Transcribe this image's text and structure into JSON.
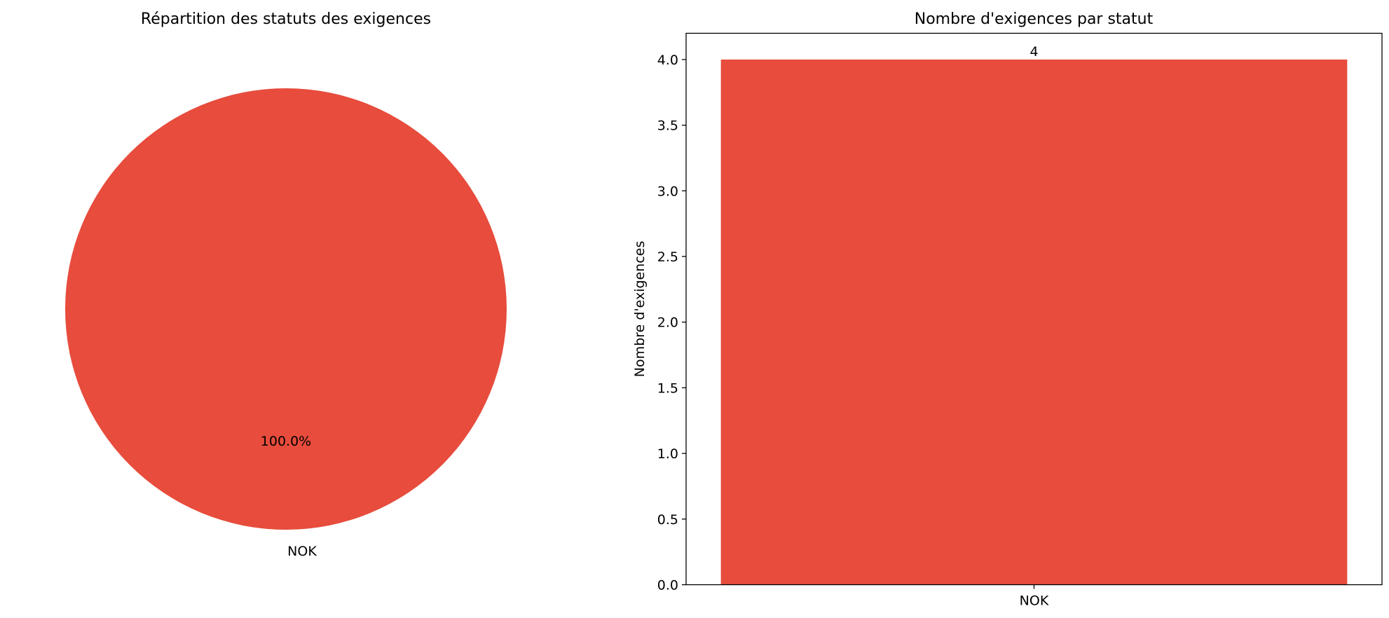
{
  "chart_data": [
    {
      "type": "pie",
      "title": "Répartition des statuts des exigences",
      "labels": [
        "NOK"
      ],
      "values": [
        4
      ],
      "percent_labels": [
        "100.0%"
      ],
      "colors": [
        "#e74c3c"
      ]
    },
    {
      "type": "bar",
      "title": "Nombre d'exigences par statut",
      "xlabel": "",
      "ylabel": "Nombre d'exigences",
      "categories": [
        "NOK"
      ],
      "values": [
        4
      ],
      "data_labels": [
        "4"
      ],
      "ylim": [
        0,
        4.2
      ],
      "yticks": [
        0.0,
        0.5,
        1.0,
        1.5,
        2.0,
        2.5,
        3.0,
        3.5,
        4.0
      ],
      "ytick_labels": [
        "0.0",
        "0.5",
        "1.0",
        "1.5",
        "2.0",
        "2.5",
        "3.0",
        "3.5",
        "4.0"
      ],
      "grid": false,
      "colors": [
        "#e74c3c"
      ]
    }
  ]
}
